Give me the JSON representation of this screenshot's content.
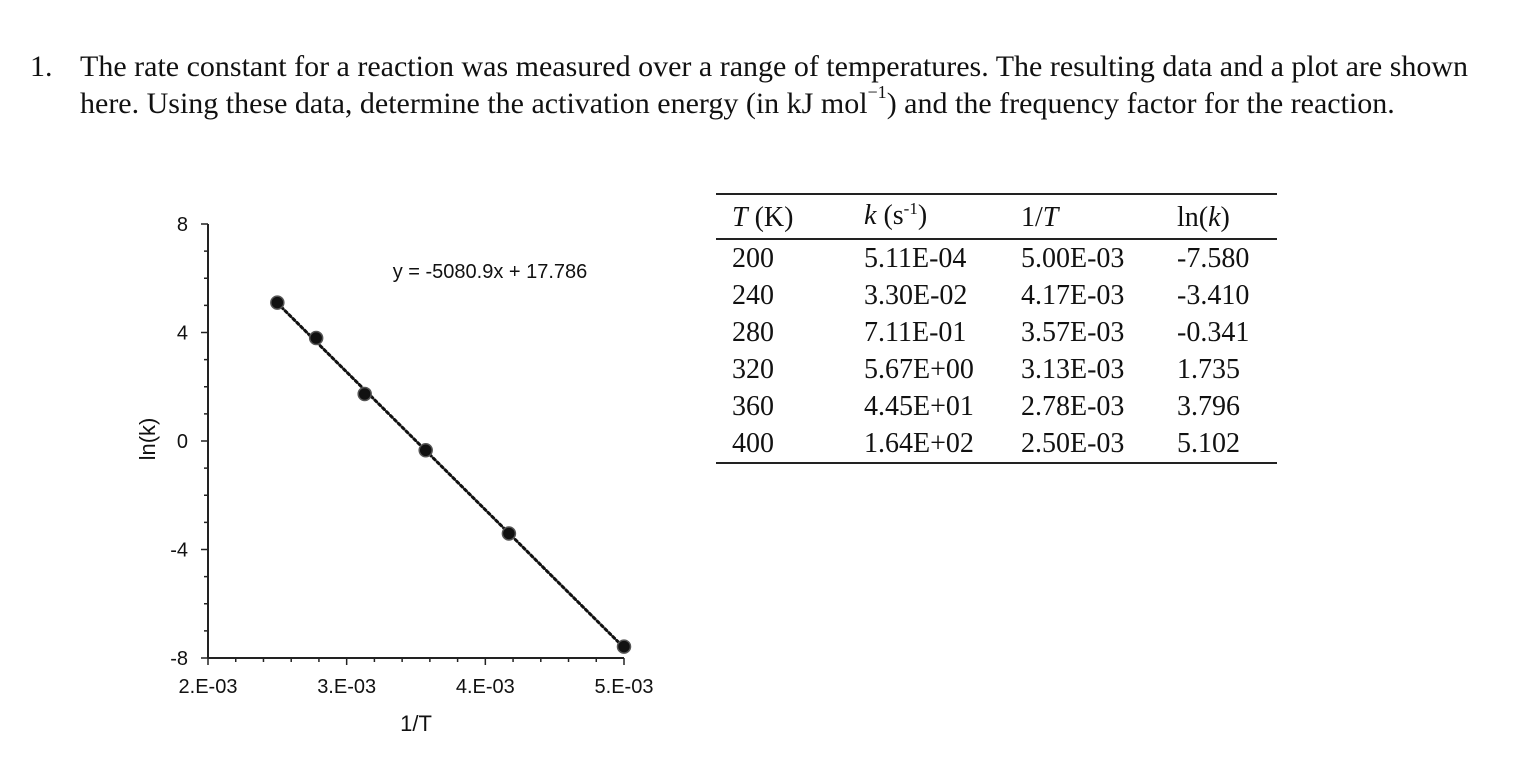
{
  "question": {
    "number": "1.",
    "text_before_unit": "The rate constant for a reaction was measured over a range of temperatures. The resulting data and a plot are shown here. Using these data, determine the activation energy (in kJ mol",
    "unit_superscript": "−1",
    "text_after_unit": ") and the frequency factor for the reaction."
  },
  "table": {
    "headers": [
      {
        "var": "T",
        "rest": " (K)"
      },
      {
        "var": "k",
        "rest": " (s",
        "sup": "-1",
        "close": ")"
      },
      {
        "pre": "1/",
        "var": "T"
      },
      {
        "pre": "ln(",
        "var": "k",
        "close": ")"
      }
    ],
    "rows": [
      [
        "200",
        "5.11E-04",
        "5.00E-03",
        "-7.580"
      ],
      [
        "240",
        "3.30E-02",
        "4.17E-03",
        "-3.410"
      ],
      [
        "280",
        "7.11E-01",
        "3.57E-03",
        "-0.341"
      ],
      [
        "320",
        "5.67E+00",
        "3.13E-03",
        "1.735"
      ],
      [
        "360",
        "4.45E+01",
        "2.78E-03",
        "3.796"
      ],
      [
        "400",
        "1.64E+02",
        "2.50E-03",
        "5.102"
      ]
    ]
  },
  "chart_data": {
    "type": "scatter",
    "title": "",
    "xlabel": "1/T",
    "ylabel": "ln(k)",
    "xlim": [
      0.002,
      0.005
    ],
    "ylim": [
      -8,
      8
    ],
    "xticks": [
      "2.E-03",
      "3.E-03",
      "4.E-03",
      "5.E-03"
    ],
    "xtick_values": [
      0.002,
      0.003,
      0.004,
      0.005
    ],
    "yticks": [
      "-8",
      "-4",
      "0",
      "4",
      "8"
    ],
    "ytick_values": [
      -8,
      -4,
      0,
      4,
      8
    ],
    "series": [
      {
        "x": [
          0.0025,
          0.00278,
          0.00313,
          0.00357,
          0.00417,
          0.005
        ],
        "y": [
          5.102,
          3.796,
          1.735,
          -0.341,
          -3.41,
          -7.58
        ]
      }
    ],
    "trendline": {
      "type": "linear",
      "slope": -5080.9,
      "intercept": 17.786,
      "equation": "y = -5080.9x + 17.786"
    },
    "grid": false,
    "legend": "none",
    "colors": {
      "marker": "#111111",
      "axis": "#222222"
    }
  }
}
